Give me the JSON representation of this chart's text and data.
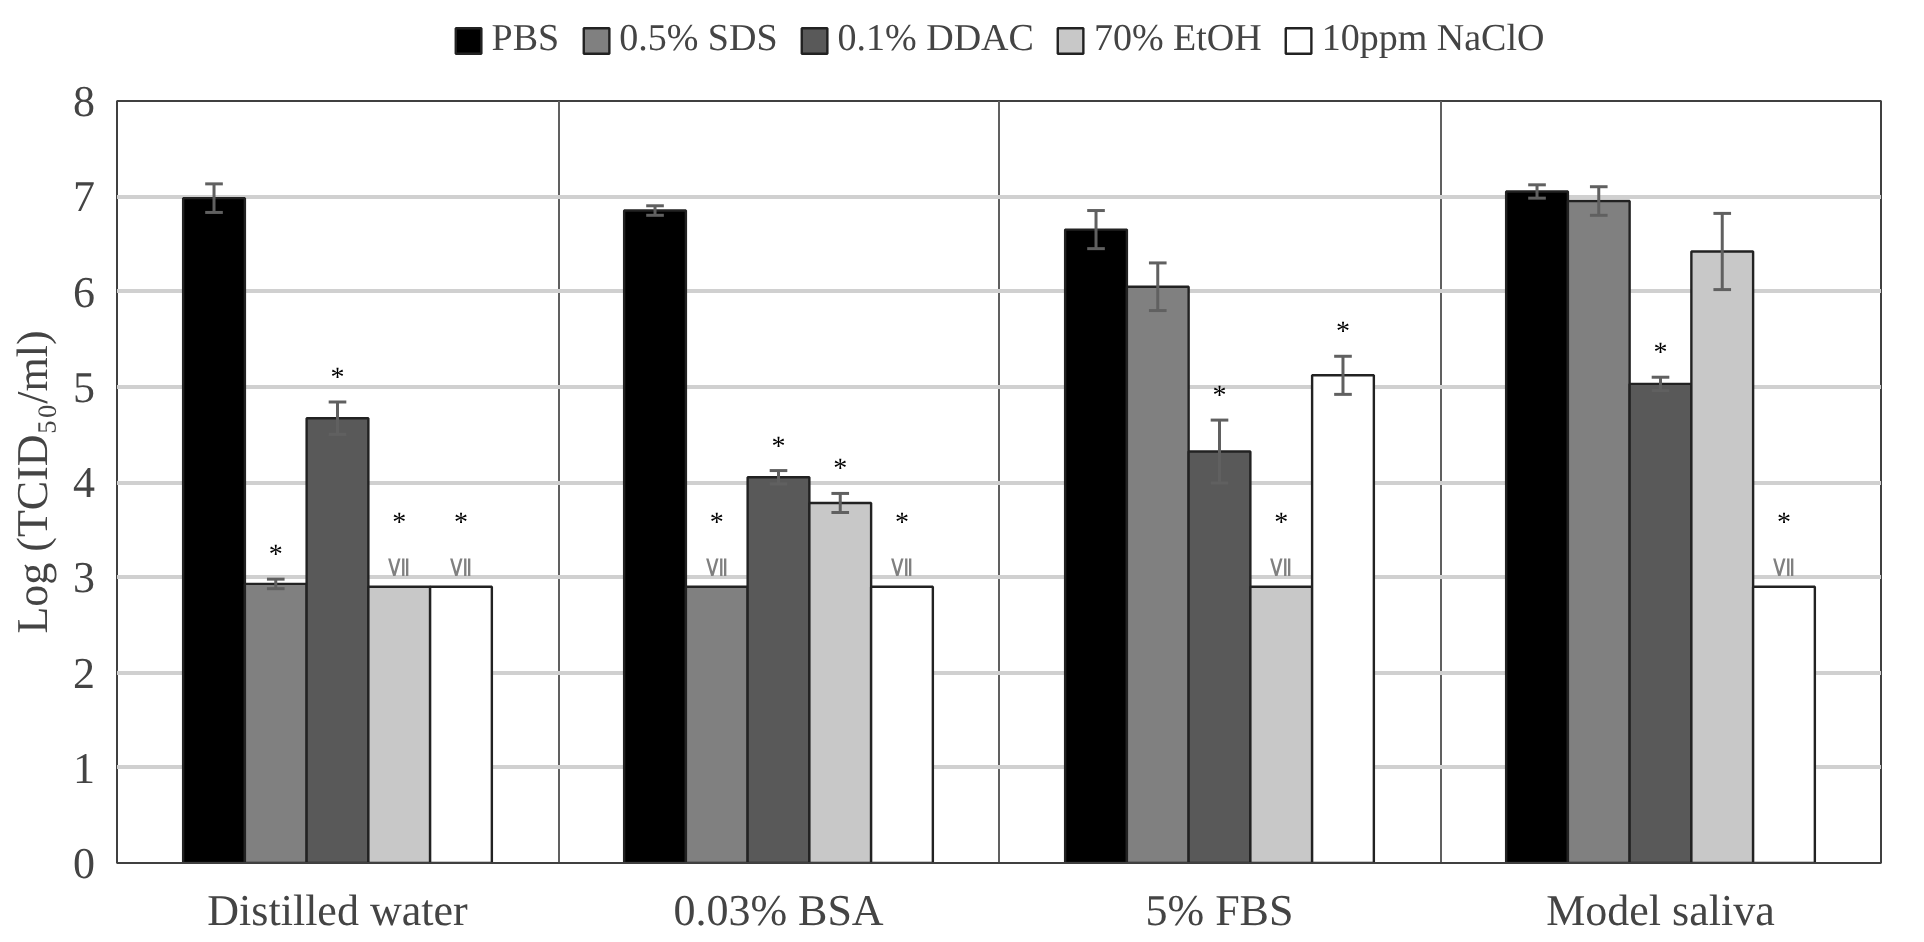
{
  "chart_data": {
    "type": "bar",
    "ylabel": "Log (TCID₅₀/ml)",
    "categories": [
      "Distilled water",
      "0.03% BSA",
      "5% FBS",
      "Model saliva"
    ],
    "ylim": [
      0,
      8
    ],
    "yticks": [
      0,
      1,
      2,
      3,
      4,
      5,
      6,
      7,
      8
    ],
    "grid": true,
    "legend": "top",
    "series": [
      {
        "name": "PBS",
        "color": "#000000",
        "values": [
          6.98,
          6.85,
          6.65,
          7.05
        ],
        "errors": [
          0.15,
          0.05,
          0.2,
          0.07
        ]
      },
      {
        "name": "0.5% SDS",
        "color": "#808080",
        "values": [
          2.93,
          2.9,
          6.05,
          6.95
        ],
        "errors": [
          0.05,
          null,
          0.25,
          0.15
        ],
        "value_labels": [
          "*",
          "≦ *",
          null,
          null
        ]
      },
      {
        "name": "0.1% DDAC",
        "color": "#595959",
        "values": [
          4.67,
          4.05,
          4.32,
          5.03
        ],
        "errors": [
          0.17,
          0.07,
          0.33,
          0.07
        ],
        "value_labels": [
          "*",
          "*",
          "*",
          "*"
        ]
      },
      {
        "name": "70% EtOH",
        "color": "#c8c8c8",
        "values": [
          2.9,
          3.78,
          2.9,
          6.42
        ],
        "errors": [
          null,
          0.1,
          null,
          0.4
        ],
        "value_labels": [
          "≦ *",
          "*",
          "≦ *",
          null
        ]
      },
      {
        "name": "10ppm NaClO",
        "color": "#ffffff",
        "values": [
          2.9,
          2.9,
          5.12,
          2.9
        ],
        "errors": [
          null,
          null,
          0.2,
          null
        ],
        "value_labels": [
          "≦ *",
          "≦ *",
          "*",
          "≦ *"
        ]
      }
    ]
  }
}
